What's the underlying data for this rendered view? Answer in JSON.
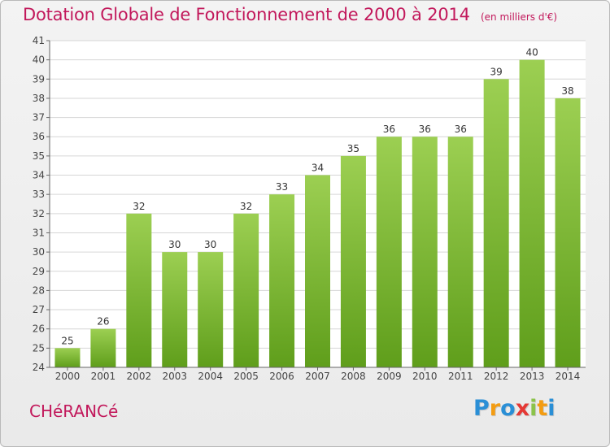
{
  "header": {
    "title": "Dotation Globale de Fonctionnement de 2000 à 2014",
    "subtitle": "(en milliers d'€)"
  },
  "footer": {
    "commune": "CHéRANCé",
    "logo_letters": [
      "P",
      "r",
      "o",
      "x",
      "i",
      "t",
      "i"
    ],
    "logo_colors": [
      "#2a8fd6",
      "#f39c12",
      "#2a8fd6",
      "#e53935",
      "#8bc34a",
      "#f39c12",
      "#2a8fd6"
    ]
  },
  "colors": {
    "title": "#c2185b",
    "bar_top": "#9ccf52",
    "bar_bottom": "#5f9e1b",
    "grid": "#d6d6d6",
    "axis": "#666666"
  },
  "chart_data": {
    "type": "bar",
    "title": "Dotation Globale de Fonctionnement de 2000 à 2014",
    "subtitle": "(en milliers d'€)",
    "categories": [
      "2000",
      "2001",
      "2002",
      "2003",
      "2004",
      "2005",
      "2006",
      "2007",
      "2008",
      "2009",
      "2010",
      "2011",
      "2012",
      "2013",
      "2014"
    ],
    "values": [
      25,
      26,
      32,
      30,
      30,
      32,
      33,
      34,
      35,
      36,
      36,
      36,
      39,
      40,
      38
    ],
    "ylim": [
      24,
      41
    ],
    "yticks": [
      24,
      25,
      26,
      27,
      28,
      29,
      30,
      31,
      32,
      33,
      34,
      35,
      36,
      37,
      38,
      39,
      40,
      41
    ],
    "grid": true,
    "data_labels": true
  }
}
